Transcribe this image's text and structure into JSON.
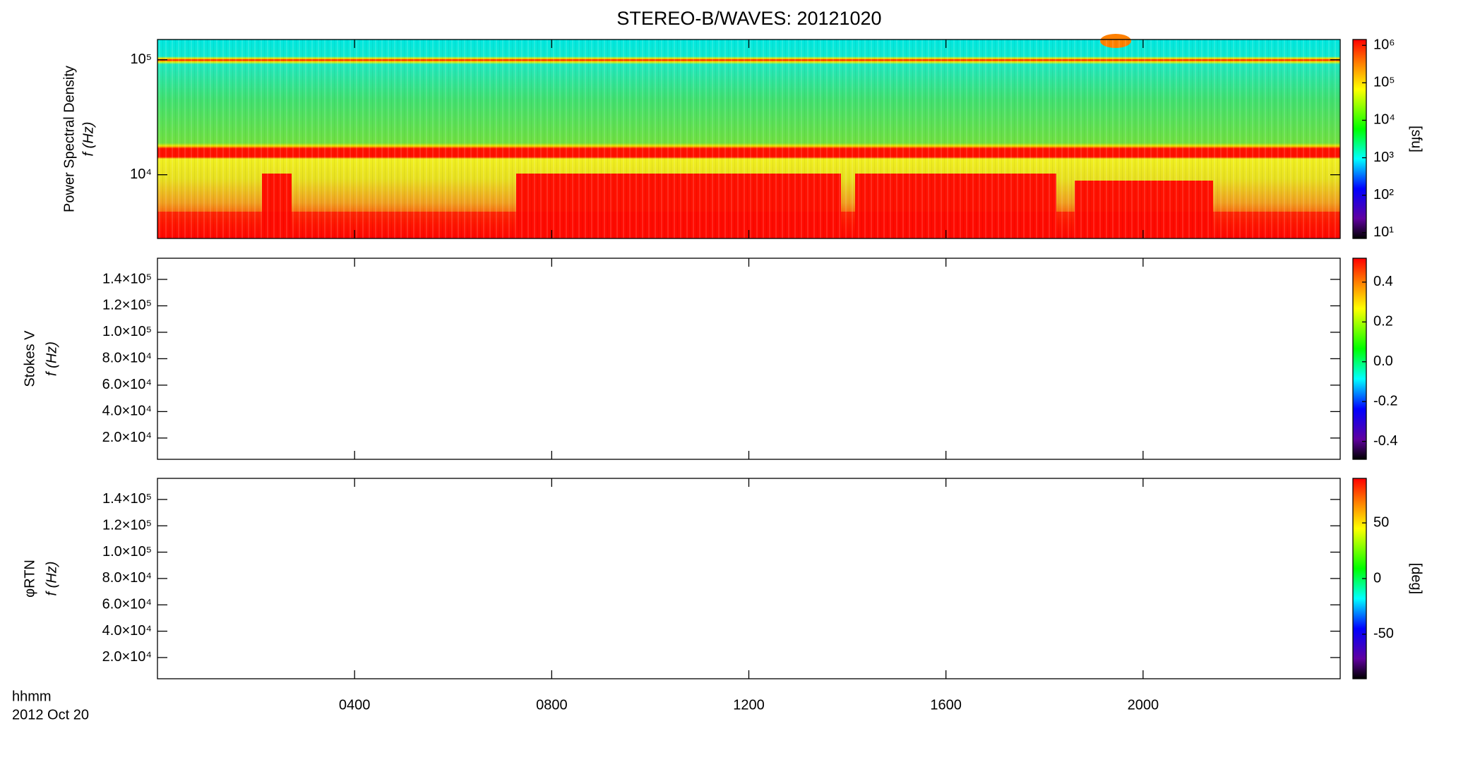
{
  "title": "STEREO-B/WAVES: 20121020",
  "x_axis": {
    "label": "hhmm",
    "date": "2012 Oct 20",
    "xlim": [
      0,
      24
    ],
    "xticks": [
      {
        "value": 4,
        "label": "0400"
      },
      {
        "value": 8,
        "label": "0800"
      },
      {
        "value": 12,
        "label": "1200"
      },
      {
        "value": 16,
        "label": "1600"
      },
      {
        "value": 20,
        "label": "2000"
      }
    ]
  },
  "chart_data": [
    {
      "type": "spectrogram",
      "ylabel": [
        "Power Spectral Density",
        "f (Hz)"
      ],
      "yscale": "log",
      "ylim": [
        2790,
        150000
      ],
      "yticks": [
        {
          "value": 10000,
          "label": "10⁴"
        },
        {
          "value": 100000,
          "label": "10⁵"
        }
      ],
      "colorbar": {
        "scale": "log",
        "clim": [
          7,
          1430000
        ],
        "label": "[sfu]",
        "ticks": [
          {
            "value": 10,
            "label": "10¹"
          },
          {
            "value": 100,
            "label": "10²"
          },
          {
            "value": 1000,
            "label": "10³"
          },
          {
            "value": 10000,
            "label": "10⁴"
          },
          {
            "value": 100000,
            "label": "10⁵"
          },
          {
            "value": 1000000,
            "label": "10⁶"
          }
        ]
      }
    },
    {
      "type": "spectrogram",
      "ylabel": [
        "Stokes V",
        "f (Hz)"
      ],
      "yscale": "linear",
      "ylim": [
        3900,
        156000
      ],
      "yticks": [
        {
          "value": 20000,
          "label": "2.0×10⁴"
        },
        {
          "value": 40000,
          "label": "4.0×10⁴"
        },
        {
          "value": 60000,
          "label": "6.0×10⁴"
        },
        {
          "value": 80000,
          "label": "8.0×10⁴"
        },
        {
          "value": 100000,
          "label": "1.0×10⁵"
        },
        {
          "value": 120000,
          "label": "1.2×10⁵"
        },
        {
          "value": 140000,
          "label": "1.4×10⁵"
        }
      ],
      "colorbar": {
        "scale": "linear",
        "clim": [
          -0.49,
          0.52
        ],
        "ticks": [
          -0.4,
          -0.2,
          {
            "value": 0,
            "label": "0.0"
          },
          0.2,
          0.4
        ]
      }
    },
    {
      "type": "spectrogram",
      "ylabel": [
        "φRTN",
        "f (Hz)"
      ],
      "yscale": "linear",
      "ylim": [
        3900,
        156000
      ],
      "yticks": [
        {
          "value": 20000,
          "label": "2.0×10⁴"
        },
        {
          "value": 40000,
          "label": "4.0×10⁴"
        },
        {
          "value": 60000,
          "label": "6.0×10⁴"
        },
        {
          "value": 80000,
          "label": "8.0×10⁴"
        },
        {
          "value": 100000,
          "label": "1.0×10⁵"
        },
        {
          "value": 120000,
          "label": "1.2×10⁵"
        },
        {
          "value": 140000,
          "label": "1.4×10⁵"
        }
      ],
      "colorbar": {
        "scale": "linear",
        "clim": [
          -90,
          90
        ],
        "label": "[deg]",
        "ticks": [
          -50,
          0,
          50
        ]
      }
    }
  ]
}
